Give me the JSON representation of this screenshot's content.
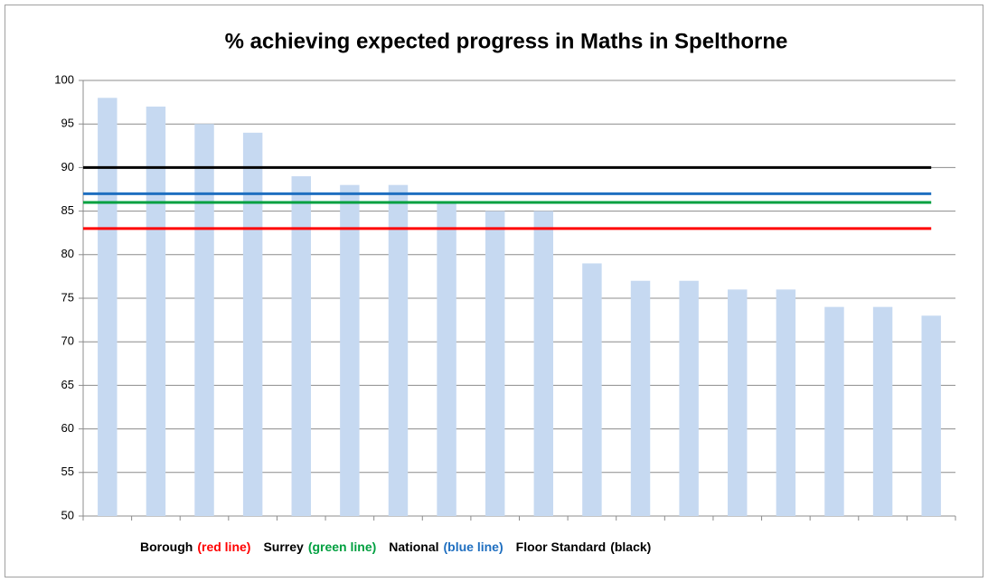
{
  "chart_data": {
    "type": "bar",
    "title": "% achieving expected progress in Maths in Spelthorne",
    "categories": [
      null,
      null,
      null,
      null,
      null,
      null,
      null,
      null,
      null,
      null,
      null,
      null,
      null,
      null,
      null,
      null,
      null,
      null
    ],
    "values": [
      98,
      97,
      95,
      94,
      89,
      88,
      88,
      86,
      85,
      85,
      79,
      77,
      77,
      76,
      76,
      74,
      74,
      73
    ],
    "color": "#c6d9f1",
    "ylim": [
      50,
      100
    ],
    "yticks": [
      50,
      55,
      60,
      65,
      70,
      75,
      80,
      85,
      90,
      95,
      100
    ],
    "grid": true,
    "reference_lines": [
      {
        "name": "Borough",
        "note": "(red line)",
        "value": 83,
        "color": "#ff0000"
      },
      {
        "name": "Surrey",
        "note": "(green line)",
        "value": 86,
        "color": "#00a040"
      },
      {
        "name": "National",
        "note": "(blue line)",
        "value": 87,
        "color": "#1f6fc0"
      },
      {
        "name": "Floor Standard",
        "note": "(black)",
        "value": 90,
        "color": "#000000"
      }
    ]
  }
}
